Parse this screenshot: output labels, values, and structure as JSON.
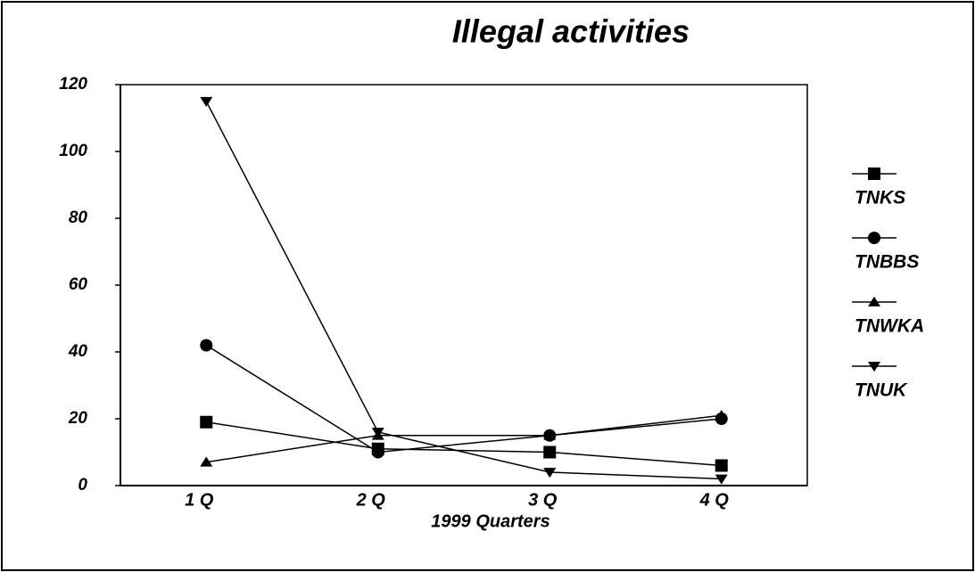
{
  "chart_data": {
    "type": "line",
    "title": "Illegal activities",
    "x_label": "1999 Quarters",
    "categories": [
      "1 Q",
      "2 Q",
      "3 Q",
      "4 Q"
    ],
    "series": [
      {
        "name": "TNKS",
        "color": "#000000",
        "marker": "square",
        "values": [
          19,
          11,
          10,
          6
        ]
      },
      {
        "name": "TNBBS",
        "color": "#000000",
        "marker": "circle",
        "values": [
          42,
          10,
          15,
          20
        ]
      },
      {
        "name": "TNWKA",
        "color": "#000000",
        "marker": "triangle-up",
        "values": [
          7,
          15,
          15,
          21
        ]
      },
      {
        "name": "TNUK",
        "color": "#000000",
        "marker": "triangle-down",
        "values": [
          115,
          16,
          4,
          2
        ]
      }
    ],
    "ylim": [
      0,
      120
    ],
    "yticks": [
      0,
      20,
      40,
      60,
      80,
      100,
      120
    ],
    "legend": "right"
  }
}
